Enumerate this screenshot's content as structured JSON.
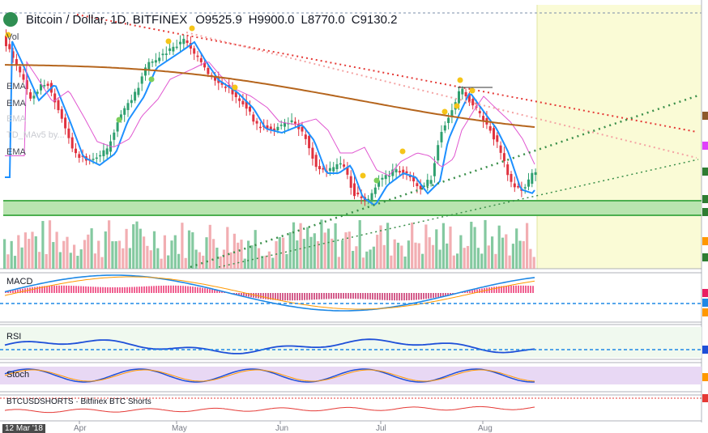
{
  "header": {
    "symbol_title": "Bitcoin / Dollar, 1D, BITFINEX",
    "open": "O9525.9",
    "high": "H9900.0",
    "low": "L8770.0",
    "close": "C9130.2"
  },
  "legend": {
    "vol": "Vol",
    "ma1": "EMA",
    "ma2": "EMA",
    "ma3": "EMA",
    "td": "TD_MAv5 by...",
    "ema": "EMA"
  },
  "panes": {
    "macd": "MACD",
    "rsi": "RSI",
    "stoch": "Stoch",
    "shorts": "BTCUSDSHORTS · Bitfinex BTC Shorts"
  },
  "time_axis": {
    "active_date": "12 Mar '18",
    "labels": [
      "Apr",
      "May",
      "Jun",
      "Jul",
      "Aug"
    ]
  },
  "colors": {
    "up": "#2fa06f",
    "down": "#e0323f",
    "ema_fast": "#1e90ff",
    "ma_slow": "#b5651d",
    "ma_mid": "#e056d0",
    "support_zone": "#b9e4b0",
    "future_zone": "#fafbd6"
  }
}
